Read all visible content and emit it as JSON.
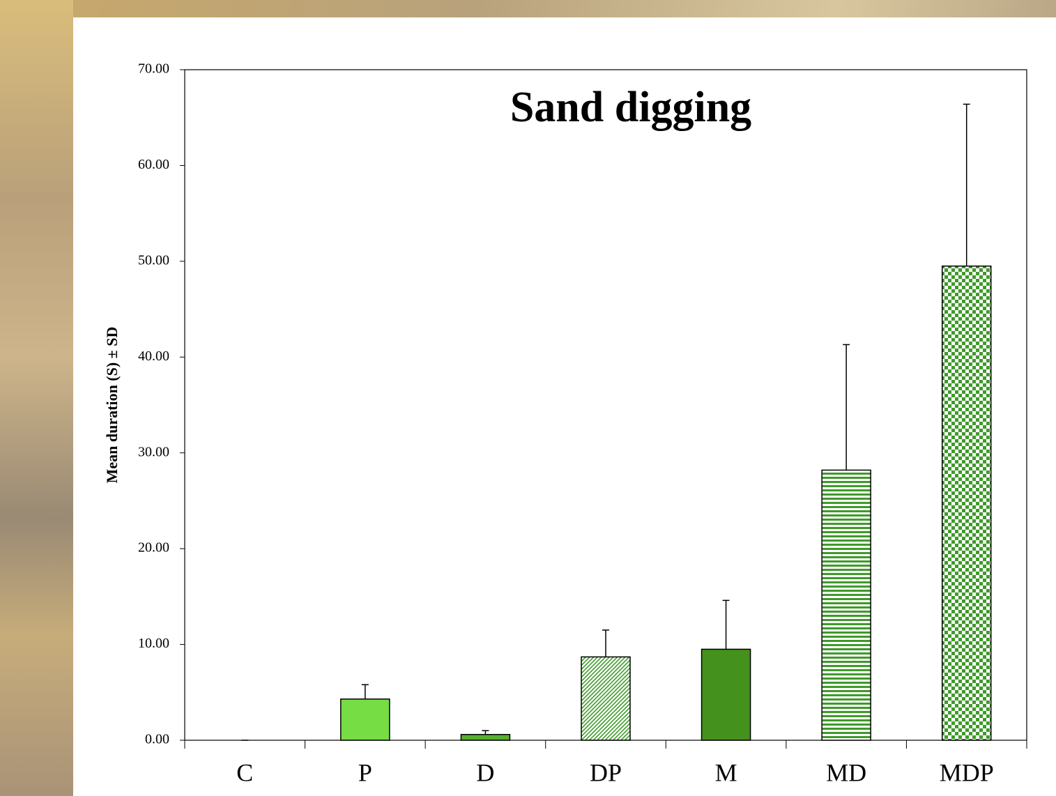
{
  "chart_data": {
    "type": "bar",
    "title": "Sand digging",
    "y_label": "Mean duration (S) ± SD",
    "categories": [
      "C",
      "P",
      "D",
      "DP",
      "M",
      "MD",
      "MDP"
    ],
    "values": [
      0,
      4.3,
      0.6,
      8.7,
      9.5,
      28.2,
      49.5
    ],
    "errors": [
      0,
      1.5,
      0.4,
      2.8,
      5.1,
      13.1,
      16.9
    ],
    "colors": [
      "#77dd44",
      "#77dd44",
      "#55b030",
      "#3f9a2a",
      "#44911e",
      "#3f9a2a",
      "#3f9a2a"
    ],
    "patterns": [
      "solid",
      "solid",
      "solid",
      "diagonal",
      "solid",
      "horizontal",
      "checker"
    ],
    "ylim": [
      0,
      70
    ],
    "yticks": [
      {
        "value": 0,
        "label": "0.00"
      },
      {
        "value": 10,
        "label": "10.00"
      },
      {
        "value": 20,
        "label": "20.00"
      },
      {
        "value": 30,
        "label": "30.00"
      },
      {
        "value": 40,
        "label": "40.00"
      },
      {
        "value": 50,
        "label": "50.00"
      },
      {
        "value": 60,
        "label": "60.00"
      },
      {
        "value": 70,
        "label": "70.00"
      }
    ]
  }
}
